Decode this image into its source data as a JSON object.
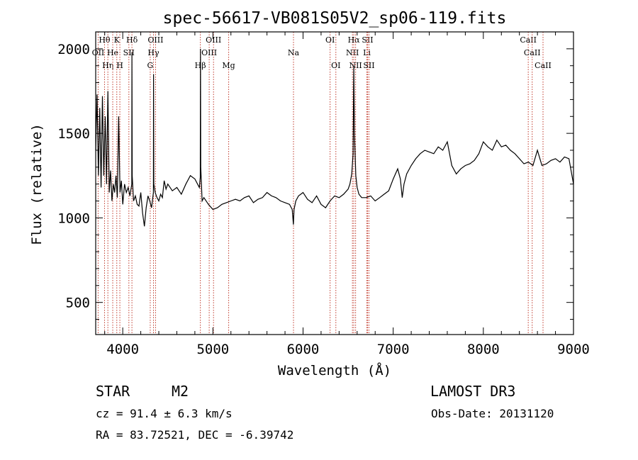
{
  "chart_data": {
    "type": "line",
    "title": "spec-56617-VB081S05V2_sp06-119.fits",
    "xlabel": "Wavelength (Å)",
    "ylabel": "Flux (relative)",
    "xlim": [
      3700,
      9000
    ],
    "ylim": [
      310,
      2100
    ],
    "x_ticks": [
      4000,
      5000,
      6000,
      7000,
      8000,
      9000
    ],
    "y_ticks": [
      500,
      1000,
      1500,
      2000
    ],
    "line_color": "#000000",
    "marker_color": "#c0392b",
    "series": [
      {
        "name": "flux",
        "x": [
          3700,
          3715,
          3730,
          3745,
          3760,
          3775,
          3790,
          3805,
          3820,
          3835,
          3850,
          3865,
          3880,
          3895,
          3910,
          3925,
          3940,
          3955,
          3970,
          3985,
          4000,
          4020,
          4040,
          4060,
          4080,
          4100,
          4102,
          4105,
          4120,
          4140,
          4160,
          4180,
          4200,
          4220,
          4240,
          4260,
          4280,
          4300,
          4320,
          4340,
          4342,
          4345,
          4360,
          4380,
          4400,
          4420,
          4440,
          4460,
          4480,
          4500,
          4550,
          4600,
          4650,
          4700,
          4750,
          4800,
          4850,
          4860,
          4862,
          4865,
          4880,
          4900,
          4950,
          5000,
          5050,
          5100,
          5150,
          5200,
          5250,
          5300,
          5350,
          5400,
          5450,
          5500,
          5550,
          5600,
          5650,
          5700,
          5750,
          5800,
          5850,
          5880,
          5893,
          5900,
          5920,
          5950,
          6000,
          6050,
          6100,
          6150,
          6200,
          6250,
          6300,
          6350,
          6400,
          6450,
          6500,
          6520,
          6540,
          6555,
          6563,
          6570,
          6585,
          6600,
          6620,
          6650,
          6700,
          6750,
          6800,
          6850,
          6900,
          6950,
          7000,
          7050,
          7080,
          7100,
          7120,
          7150,
          7200,
          7250,
          7300,
          7350,
          7400,
          7450,
          7500,
          7550,
          7600,
          7650,
          7700,
          7750,
          7800,
          7850,
          7900,
          7950,
          8000,
          8050,
          8100,
          8150,
          8200,
          8250,
          8300,
          8350,
          8400,
          8450,
          8500,
          8550,
          8600,
          8650,
          8700,
          8750,
          8800,
          8850,
          8900,
          8950,
          9000
        ],
        "values": [
          1400,
          1730,
          1250,
          1650,
          1180,
          1720,
          1250,
          1600,
          1200,
          1750,
          1150,
          1280,
          1100,
          1200,
          1150,
          1250,
          1120,
          1600,
          1150,
          1220,
          1080,
          1200,
          1150,
          1180,
          1130,
          1200,
          1980,
          1250,
          1100,
          1130,
          1080,
          1070,
          1150,
          1030,
          950,
          1060,
          1130,
          1100,
          1060,
          1150,
          1850,
          1200,
          1150,
          1120,
          1100,
          1140,
          1120,
          1220,
          1170,
          1200,
          1160,
          1180,
          1140,
          1200,
          1250,
          1230,
          1180,
          1240,
          2000,
          1300,
          1100,
          1120,
          1080,
          1050,
          1060,
          1080,
          1090,
          1100,
          1110,
          1100,
          1120,
          1130,
          1090,
          1110,
          1120,
          1150,
          1130,
          1120,
          1100,
          1090,
          1080,
          1050,
          960,
          1050,
          1100,
          1130,
          1150,
          1110,
          1090,
          1130,
          1080,
          1060,
          1100,
          1130,
          1120,
          1140,
          1170,
          1200,
          1260,
          1380,
          1900,
          1500,
          1250,
          1180,
          1140,
          1120,
          1120,
          1130,
          1100,
          1120,
          1140,
          1160,
          1230,
          1290,
          1230,
          1120,
          1200,
          1260,
          1310,
          1350,
          1380,
          1400,
          1390,
          1380,
          1420,
          1400,
          1450,
          1310,
          1260,
          1290,
          1310,
          1320,
          1340,
          1380,
          1450,
          1420,
          1400,
          1460,
          1420,
          1430,
          1400,
          1380,
          1350,
          1320,
          1330,
          1310,
          1400,
          1310,
          1320,
          1340,
          1350,
          1330,
          1360,
          1350,
          1200
        ]
      }
    ],
    "lines": [
      {
        "label": "OII",
        "wavelength": 3727,
        "row": 1
      },
      {
        "label": "Hθ",
        "wavelength": 3798,
        "row": 0
      },
      {
        "label": "Hη",
        "wavelength": 3835,
        "row": 2
      },
      {
        "label": "He",
        "wavelength": 3889,
        "row": 1
      },
      {
        "label": "K",
        "wavelength": 3934,
        "row": 0
      },
      {
        "label": "H",
        "wavelength": 3968,
        "row": 2
      },
      {
        "label": "SII",
        "wavelength": 4068,
        "row": 1
      },
      {
        "label": "Hδ",
        "wavelength": 4102,
        "row": 0
      },
      {
        "label": "G",
        "wavelength": 4305,
        "row": 2
      },
      {
        "label": "Hγ",
        "wavelength": 4341,
        "row": 1
      },
      {
        "label": "OIII",
        "wavelength": 4364,
        "row": 0
      },
      {
        "label": "Hβ",
        "wavelength": 4861,
        "row": 2
      },
      {
        "label": "OIII",
        "wavelength": 4959,
        "row": 1
      },
      {
        "label": "OIII",
        "wavelength": 5007,
        "row": 0
      },
      {
        "label": "Mg",
        "wavelength": 5175,
        "row": 2
      },
      {
        "label": "Na",
        "wavelength": 5894,
        "row": 1
      },
      {
        "label": "OI",
        "wavelength": 6300,
        "row": 0
      },
      {
        "label": "OI",
        "wavelength": 6364,
        "row": 2
      },
      {
        "label": "NII",
        "wavelength": 6548,
        "row": 1
      },
      {
        "label": "Hα",
        "wavelength": 6563,
        "row": 0
      },
      {
        "label": "NII",
        "wavelength": 6583,
        "row": 2
      },
      {
        "label": "Li",
        "wavelength": 6708,
        "row": 1
      },
      {
        "label": "SII",
        "wavelength": 6716,
        "row": 0
      },
      {
        "label": "SII",
        "wavelength": 6731,
        "row": 2
      },
      {
        "label": "CaII",
        "wavelength": 8498,
        "row": 0
      },
      {
        "label": "CaII",
        "wavelength": 8542,
        "row": 1
      },
      {
        "label": "CaII",
        "wavelength": 8662,
        "row": 2
      }
    ]
  },
  "info": {
    "object_class": "STAR",
    "subclass": "M2",
    "survey": "LAMOST DR3",
    "redshift_line": "cz = 91.4 ± 6.3 km/s",
    "obs_date": "Obs-Date: 20131120",
    "coordinates": "RA =  83.72521, DEC =  -6.39742"
  }
}
